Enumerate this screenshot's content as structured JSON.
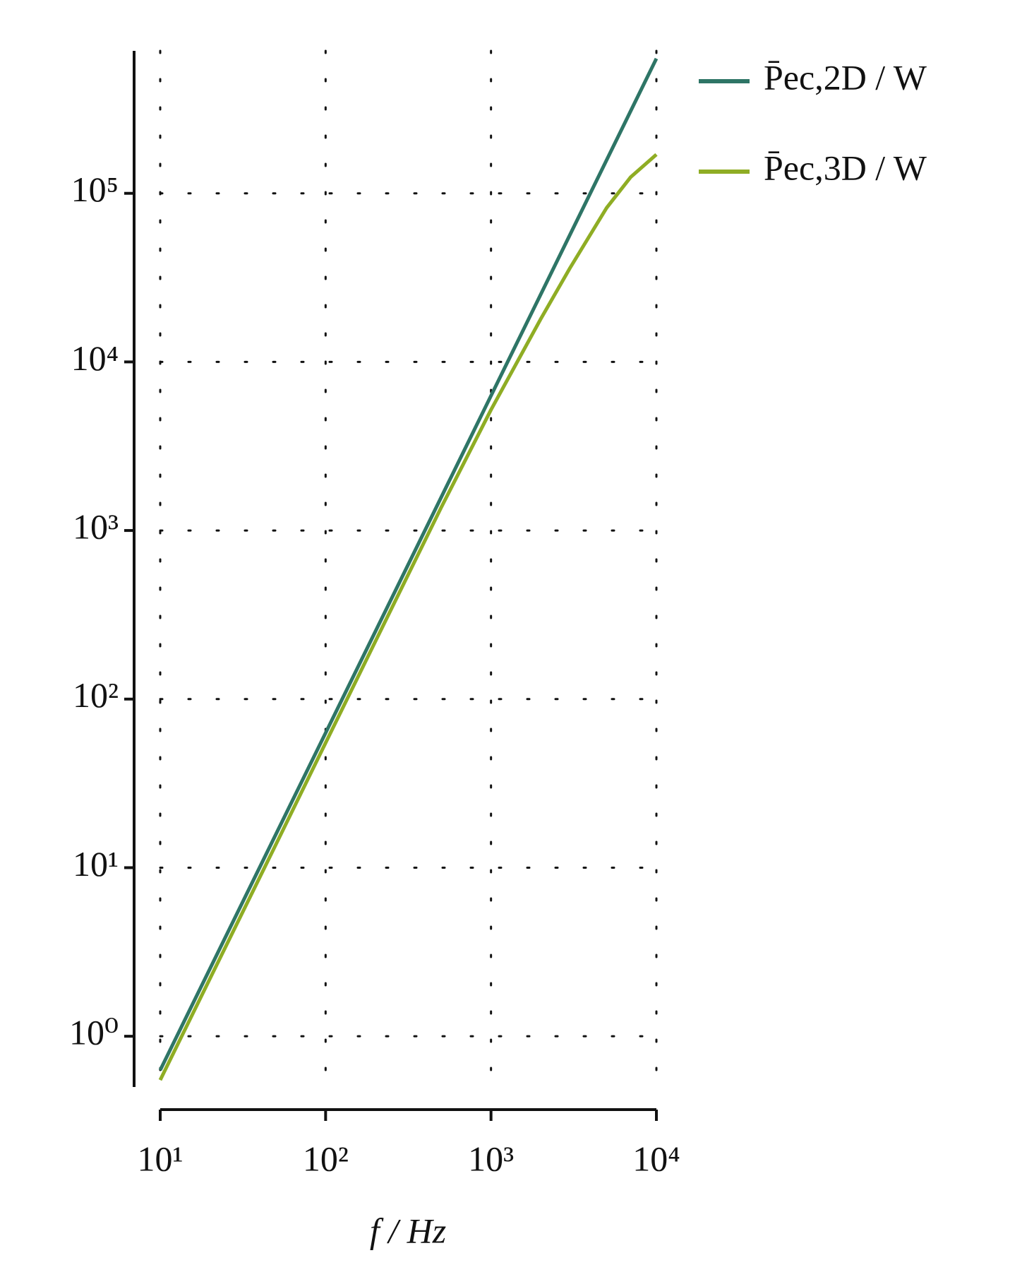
{
  "chart_data": {
    "type": "line",
    "xlabel": "f / Hz",
    "x": [
      10,
      20,
      50,
      100,
      200,
      500,
      1000,
      2000,
      3000,
      5000,
      7000,
      10000
    ],
    "series": [
      {
        "name": "P̄ec,2D / W",
        "color": "#2e7566",
        "values": [
          0.63,
          2.52,
          15.75,
          63,
          252,
          1575,
          6300,
          25200,
          56700,
          157500,
          308700,
          630000
        ]
      },
      {
        "name": "P̄ec,3D / W",
        "color": "#8fad24",
        "values": [
          0.55,
          2.2,
          13.7,
          55,
          220,
          1370,
          5200,
          18000,
          36000,
          82000,
          125000,
          170000
        ]
      }
    ],
    "xscale": "log",
    "yscale": "log",
    "xlim": [
      10,
      10000
    ],
    "ylim": [
      0.5,
      700000
    ],
    "xticks": [
      {
        "value": 10,
        "label": "10¹"
      },
      {
        "value": 100,
        "label": "10²"
      },
      {
        "value": 1000,
        "label": "10³"
      },
      {
        "value": 10000,
        "label": "10⁴"
      }
    ],
    "yticks": [
      {
        "value": 1,
        "label": "10⁰"
      },
      {
        "value": 10,
        "label": "10¹"
      },
      {
        "value": 100,
        "label": "10²"
      },
      {
        "value": 1000,
        "label": "10³"
      },
      {
        "value": 10000,
        "label": "10⁴"
      },
      {
        "value": 100000,
        "label": "10⁵"
      }
    ],
    "grid": true,
    "legend": "outside-right"
  }
}
